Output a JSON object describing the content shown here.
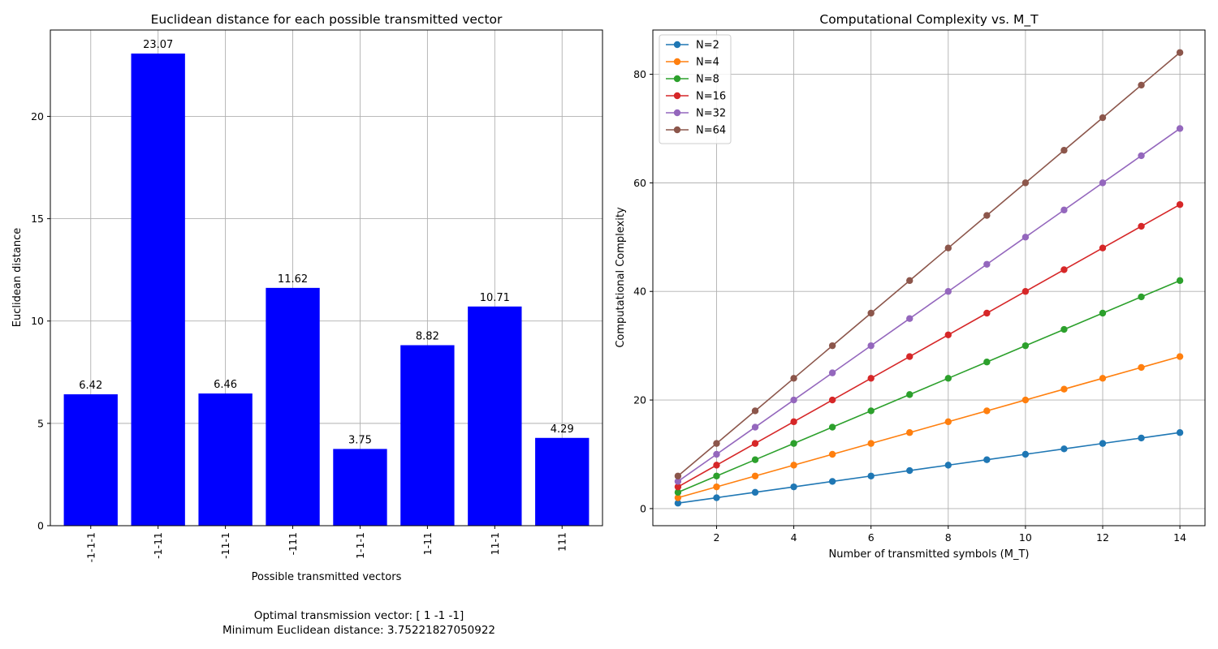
{
  "chart_data": [
    {
      "type": "bar",
      "title": "Euclidean distance for each possible transmitted vector",
      "xlabel": "Possible transmitted vectors",
      "ylabel": "Euclidean distance",
      "categories": [
        "-1-1-1",
        "-1-11",
        "-11-1",
        "-111",
        "1-1-1",
        "1-11",
        "11-1",
        "111"
      ],
      "values": [
        6.42,
        23.07,
        6.46,
        11.62,
        3.75,
        8.82,
        10.71,
        4.29
      ],
      "data_labels": [
        "6.42",
        "23.07",
        "6.46",
        "11.62",
        "3.75",
        "8.82",
        "10.71",
        "4.29"
      ],
      "ylim": [
        0,
        24.22
      ],
      "yticks": [
        0,
        5,
        10,
        15,
        20
      ],
      "bar_color": "#0000ff",
      "grid": true
    },
    {
      "type": "line",
      "title": "Computational Complexity vs. M_T",
      "xlabel": "Number of transmitted symbols (M_T)",
      "ylabel": "Computational Complexity",
      "x": [
        1,
        2,
        3,
        4,
        5,
        6,
        7,
        8,
        9,
        10,
        11,
        12,
        13,
        14
      ],
      "xlim": [
        0.35,
        14.65
      ],
      "ylim": [
        -3.15,
        88.15
      ],
      "xticks": [
        2,
        4,
        6,
        8,
        10,
        12,
        14
      ],
      "yticks": [
        0,
        20,
        40,
        60,
        80
      ],
      "grid": true,
      "legend_position": "top-left",
      "series": [
        {
          "name": "N=2",
          "color": "#1f77b4",
          "values": [
            1,
            2,
            3,
            4,
            5,
            6,
            7,
            8,
            9,
            10,
            11,
            12,
            13,
            14
          ]
        },
        {
          "name": "N=4",
          "color": "#ff7f0e",
          "values": [
            2,
            4,
            6,
            8,
            10,
            12,
            14,
            16,
            18,
            20,
            22,
            24,
            26,
            28
          ]
        },
        {
          "name": "N=8",
          "color": "#2ca02c",
          "values": [
            3,
            6,
            9,
            12,
            15,
            18,
            21,
            24,
            27,
            30,
            33,
            36,
            39,
            42
          ]
        },
        {
          "name": "N=16",
          "color": "#d62728",
          "values": [
            4,
            8,
            12,
            16,
            20,
            24,
            28,
            32,
            36,
            40,
            44,
            48,
            52,
            56
          ]
        },
        {
          "name": "N=32",
          "color": "#9467bd",
          "values": [
            5,
            10,
            15,
            20,
            25,
            30,
            35,
            40,
            45,
            50,
            55,
            60,
            65,
            70
          ]
        },
        {
          "name": "N=64",
          "color": "#8c564b",
          "values": [
            6,
            12,
            18,
            24,
            30,
            36,
            42,
            48,
            54,
            60,
            66,
            72,
            78,
            84
          ]
        }
      ]
    }
  ],
  "caption": {
    "line1": "Optimal transmission vector: [ 1 -1 -1]",
    "line2": "Minimum Euclidean distance: 3.75221827050922"
  }
}
